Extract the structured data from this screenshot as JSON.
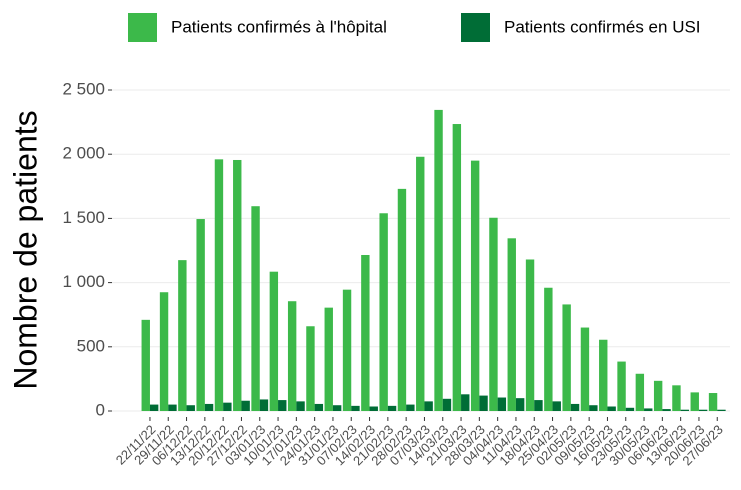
{
  "chart_data": {
    "type": "bar",
    "y_label": "Nombre de patients",
    "categories": [
      "22/11/22",
      "29/11/22",
      "06/12/22",
      "13/12/22",
      "20/12/22",
      "27/12/22",
      "03/01/23",
      "10/01/23",
      "17/01/23",
      "24/01/23",
      "31/01/23",
      "07/02/23",
      "14/02/23",
      "21/02/23",
      "28/02/23",
      "07/03/23",
      "14/03/23",
      "21/03/23",
      "28/03/23",
      "04/04/23",
      "11/04/23",
      "18/04/23",
      "25/04/23",
      "02/05/23",
      "09/05/23",
      "16/05/23",
      "23/05/23",
      "30/05/23",
      "06/06/23",
      "13/06/23",
      "20/06/23",
      "27/06/23"
    ],
    "series": [
      {
        "name": "Patients confirmés à l'hôpital",
        "color": "#3cb94a",
        "values": [
          710,
          925,
          1175,
          1495,
          1960,
          1955,
          1595,
          1085,
          855,
          660,
          805,
          945,
          1215,
          1540,
          1730,
          1980,
          2345,
          2235,
          1950,
          1505,
          1345,
          1180,
          960,
          830,
          650,
          555,
          385,
          290,
          235,
          200,
          145,
          140
        ]
      },
      {
        "name": "Patients confirmés en USI",
        "color": "#006d36",
        "values": [
          50,
          50,
          45,
          55,
          65,
          80,
          90,
          85,
          75,
          55,
          45,
          40,
          35,
          40,
          50,
          75,
          95,
          130,
          120,
          105,
          100,
          85,
          75,
          55,
          45,
          35,
          25,
          20,
          15,
          10,
          10,
          10
        ]
      }
    ],
    "ylim": [
      0,
      2620
    ],
    "yticks": [
      0,
      500,
      {
        "value": 1000,
        "label": "1 000"
      },
      {
        "value": 1500,
        "label": "1 500"
      },
      {
        "value": 2000,
        "label": "2 000"
      },
      {
        "value": 2500,
        "label": "2 500"
      }
    ],
    "grid": true,
    "legend": "top"
  }
}
